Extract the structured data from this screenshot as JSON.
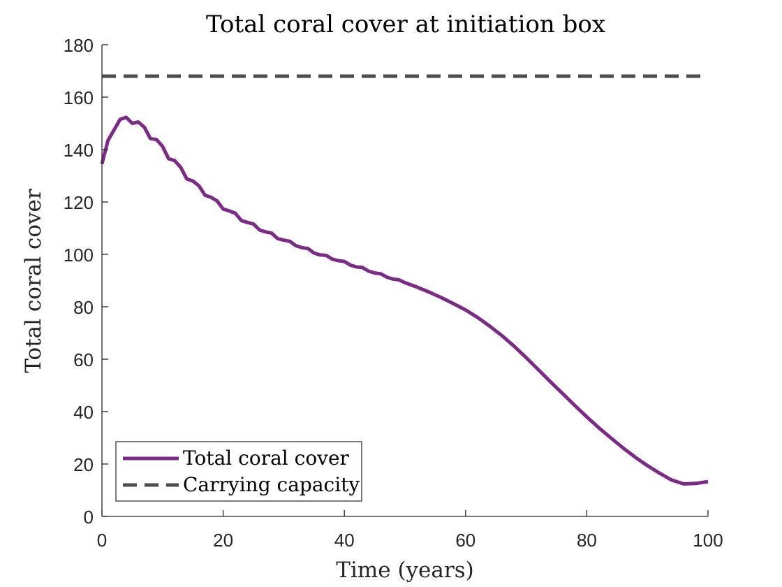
{
  "chart_data": {
    "type": "line",
    "title": "Total coral cover at initiation box",
    "xlabel": "Time (years)",
    "ylabel": "Total coral cover",
    "xlim": [
      0,
      100
    ],
    "ylim": [
      0,
      180
    ],
    "xticks": [
      0,
      20,
      40,
      60,
      80,
      100
    ],
    "yticks": [
      0,
      20,
      40,
      60,
      80,
      100,
      120,
      140,
      160,
      180
    ],
    "grid": false,
    "legend_position": "bottom-left",
    "series": [
      {
        "name": "Total coral cover",
        "color": "#7b2a86",
        "style": "solid",
        "x": [
          0,
          1,
          2,
          3,
          4,
          5,
          6,
          7,
          8,
          9,
          10,
          11,
          12,
          13,
          14,
          15,
          16,
          17,
          18,
          19,
          20,
          21,
          22,
          23,
          24,
          25,
          26,
          27,
          28,
          29,
          30,
          31,
          32,
          33,
          34,
          35,
          36,
          37,
          38,
          39,
          40,
          41,
          42,
          43,
          44,
          45,
          46,
          47,
          48,
          49,
          50,
          52,
          54,
          56,
          58,
          60,
          62,
          64,
          66,
          68,
          70,
          72,
          74,
          76,
          78,
          80,
          82,
          84,
          86,
          88,
          90,
          92,
          94,
          96,
          98,
          100
        ],
        "values": [
          134.5,
          143.5,
          147.5,
          151.5,
          152.3,
          150.0,
          150.5,
          148.5,
          144.2,
          143.8,
          141.2,
          136.5,
          135.8,
          133.2,
          128.8,
          128.0,
          126.2,
          122.6,
          121.8,
          120.4,
          117.3,
          116.6,
          115.7,
          112.9,
          112.2,
          111.6,
          109.3,
          108.6,
          108.1,
          106.0,
          105.4,
          105.0,
          103.3,
          102.6,
          102.2,
          100.5,
          99.8,
          99.6,
          98.2,
          97.6,
          97.3,
          95.9,
          95.2,
          95.0,
          93.6,
          92.9,
          92.6,
          91.3,
          90.6,
          90.3,
          89.2,
          87.5,
          85.6,
          83.5,
          81.2,
          78.8,
          75.9,
          72.6,
          69.0,
          65.0,
          60.6,
          56.0,
          51.4,
          46.9,
          42.4,
          38.0,
          33.8,
          29.9,
          26.1,
          22.6,
          19.4,
          16.5,
          13.9,
          12.4,
          12.6,
          13.3
        ]
      },
      {
        "name": "Carrying capacity",
        "color": "#4d4d4d",
        "style": "dashed",
        "x": [
          0,
          100
        ],
        "values": [
          168,
          168
        ]
      }
    ]
  }
}
